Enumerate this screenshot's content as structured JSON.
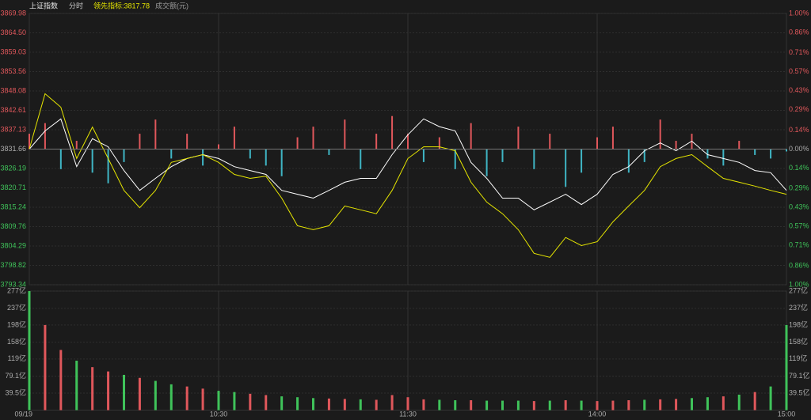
{
  "chart_data": {
    "type": "line",
    "labels": [
      "上证指数",
      "分时",
      "领先指标:3817.78",
      "成交额(元)"
    ],
    "categories": [
      "09/19",
      null,
      null,
      null,
      null,
      null,
      null,
      null,
      null,
      null,
      null,
      null,
      "10:30",
      null,
      null,
      null,
      null,
      null,
      null,
      null,
      null,
      null,
      null,
      null,
      "11:30",
      null,
      null,
      null,
      null,
      null,
      null,
      null,
      null,
      null,
      null,
      null,
      "14:00",
      null,
      null,
      null,
      null,
      null,
      null,
      null,
      null,
      null,
      null,
      null,
      "15:00"
    ],
    "ylim": [
      3793.34,
      3869.98
    ],
    "yticks": [
      3869.98,
      {
        "value": 3864.5,
        "label": "3864.50"
      },
      3859.03,
      3853.56,
      3848.08,
      3842.61,
      3837.13,
      3831.66,
      3826.19,
      3820.71,
      3815.24,
      3809.76,
      3804.29,
      3798.82,
      3793.34
    ],
    "y2lim": [
      -1,
      1
    ],
    "y2ticks": [
      {
        "value": 1,
        "label": "1.00%"
      },
      {
        "value": 0.86,
        "label": "0.86%"
      },
      {
        "value": 0.71,
        "label": "0.71%"
      },
      {
        "value": 0.57,
        "label": "0.57%"
      },
      {
        "value": 0.43,
        "label": "0.43%"
      },
      {
        "value": 0.29,
        "label": "0.29%"
      },
      {
        "value": 0.14,
        "label": "0.14%"
      },
      {
        "value": 0,
        "label": "0.00%"
      },
      {
        "value": -0.14,
        "label": "0.14%"
      },
      {
        "value": -0.29,
        "label": "0.29%"
      },
      {
        "value": -0.43,
        "label": "0.43%"
      },
      {
        "value": -0.57,
        "label": "0.57%"
      },
      {
        "value": -0.71,
        "label": "0.71%"
      },
      {
        "value": -0.86,
        "label": "0.86%"
      },
      {
        "value": -1,
        "label": "1.00%"
      }
    ],
    "grid": true,
    "series": [
      {
        "color": "#ffffff",
        "values": [
          3831.66,
          3836.8,
          3840.2,
          3826.7,
          3834.6,
          3832.3,
          3825.6,
          3820.0,
          3823.4,
          3826.7,
          3829.0,
          3830.1,
          3829.0,
          3826.7,
          3825.6,
          3824.5,
          3820.0,
          3818.9,
          3817.8,
          3820.0,
          3822.3,
          3823.4,
          3823.4,
          3830.1,
          3835.7,
          3840.2,
          3838.0,
          3836.8,
          3827.9,
          3823.4,
          3817.8,
          3817.8,
          3814.5,
          3816.7,
          3818.9,
          3816.0,
          3818.9,
          3824.5,
          3826.7,
          3831.2,
          3833.4,
          3831.2,
          3833.9,
          3830.1,
          3829.0,
          3827.9,
          3825.6,
          3825.0,
          3820.0
        ]
      },
      {
        "color": "#e6e600",
        "values": [
          3831.66,
          3847.3,
          3843.5,
          3829.0,
          3837.9,
          3829.0,
          3820.0,
          3815.1,
          3820.0,
          3827.9,
          3829.0,
          3830.1,
          3827.9,
          3824.5,
          3823.4,
          3824.0,
          3817.8,
          3810.0,
          3808.9,
          3810.0,
          3815.6,
          3814.5,
          3813.4,
          3820.0,
          3829.0,
          3832.3,
          3832.3,
          3831.2,
          3822.3,
          3816.7,
          3813.4,
          3808.9,
          3802.2,
          3801.1,
          3806.7,
          3804.4,
          3805.5,
          3811.1,
          3815.6,
          3820.0,
          3826.7,
          3829.0,
          3830.1,
          3826.7,
          3823.4,
          3822.3,
          3821.2,
          3820.0,
          3818.9
        ]
      }
    ],
    "bars": {
      "colors": [
        "#e0575b",
        "#3fb5c4"
      ],
      "values": [
        3836,
        3839,
        3826,
        3834,
        3825,
        3822,
        3828,
        3836,
        3840,
        3829,
        3836,
        3827,
        3833,
        3838,
        3829,
        3827,
        3824,
        3835,
        3838,
        3830,
        3840,
        3826,
        3836,
        3841,
        3836,
        3828,
        3835,
        3826,
        3839,
        3824,
        3828,
        3838,
        3826,
        3836,
        3821,
        3825,
        3835,
        3838,
        3825,
        3828,
        3840,
        3834,
        3836,
        3829,
        3827,
        3834,
        3830,
        3829,
        3831
      ]
    },
    "volume": {
      "ylim": [
        0,
        277
      ],
      "yticks": [
        {
          "value": 277,
          "label": "277亿"
        },
        {
          "value": 237,
          "label": "237亿"
        },
        {
          "value": 198,
          "label": "198亿"
        },
        {
          "value": 158,
          "label": "158亿"
        },
        {
          "value": 119,
          "label": "119亿"
        },
        {
          "value": 79.1,
          "label": "79.1亿"
        },
        {
          "value": 39.5,
          "label": "39.5亿"
        }
      ],
      "values": [
        277,
        198,
        140,
        115,
        100,
        90,
        82,
        75,
        68,
        60,
        55,
        50,
        45,
        42,
        38,
        35,
        32,
        30,
        28,
        27,
        26,
        25,
        24,
        35,
        30,
        25,
        24,
        23,
        23,
        22,
        22,
        22,
        21,
        22,
        23,
        22,
        21,
        22,
        23,
        24,
        25,
        26,
        28,
        30,
        32,
        36,
        42,
        55,
        198
      ],
      "colors": [
        "#3fc35a",
        "#e0575b",
        "#e0575b",
        "#3fc35a",
        "#e0575b",
        "#e0575b",
        "#3fc35a",
        "#e0575b",
        "#3fc35a",
        "#3fc35a",
        "#e0575b",
        "#e0575b",
        "#3fc35a",
        "#3fc35a",
        "#e0575b",
        "#e0575b",
        "#3fc35a",
        "#3fc35a",
        "#3fc35a",
        "#e0575b",
        "#e0575b",
        "#3fc35a",
        "#e0575b",
        "#e0575b",
        "#e0575b",
        "#e0575b",
        "#3fc35a",
        "#3fc35a",
        "#e0575b",
        "#3fc35a",
        "#3fc35a",
        "#3fc35a",
        "#e0575b",
        "#3fc35a",
        "#e0575b",
        "#3fc35a",
        "#e0575b",
        "#e0575b",
        "#e0575b",
        "#3fc35a",
        "#e0575b",
        "#e0575b",
        "#3fc35a",
        "#3fc35a",
        "#e0575b",
        "#3fc35a",
        "#e0575b",
        "#3fc35a",
        "#3fc35a"
      ]
    }
  }
}
